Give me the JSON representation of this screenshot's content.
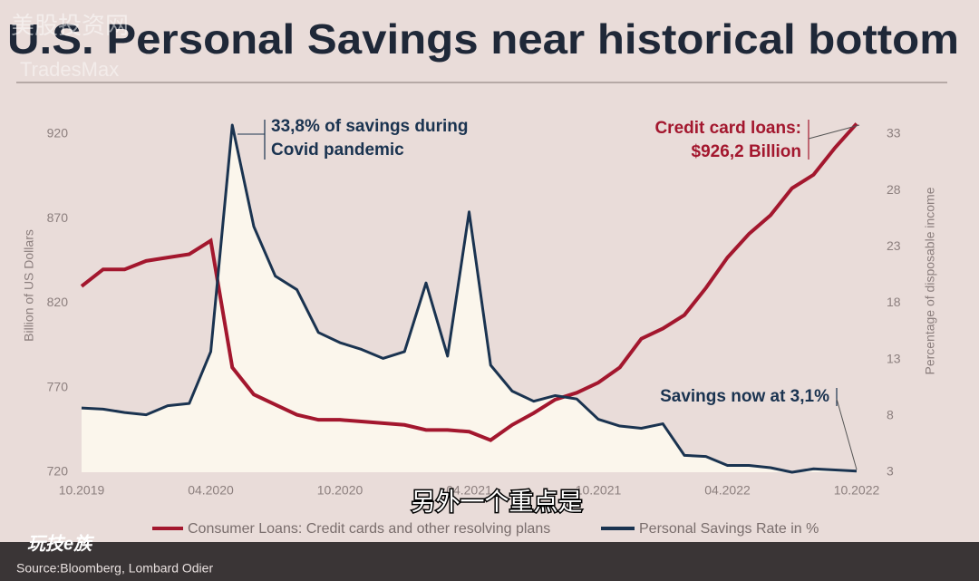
{
  "chart_data": {
    "type": "line",
    "title": "U.S. Personal Savings near historical bottom",
    "watermark": [
      "美股投资网",
      "TradesMax"
    ],
    "y_label": "Billion of US Dollars",
    "y2_label": "Percentage of disposable income",
    "categories": [
      "10.2019",
      null,
      null,
      null,
      null,
      null,
      "04.2020",
      null,
      null,
      null,
      null,
      null,
      "10.2020",
      null,
      null,
      null,
      null,
      null,
      "04.2021",
      null,
      null,
      null,
      null,
      null,
      "10.2021",
      null,
      null,
      null,
      null,
      null,
      "04.2022",
      null,
      null,
      null,
      null,
      null,
      "10.2022"
    ],
    "ylim": [
      720,
      920
    ],
    "yticks": [
      720,
      770,
      820,
      870,
      920
    ],
    "y2lim": [
      3,
      33
    ],
    "y2ticks": [
      3,
      8,
      13,
      18,
      23,
      28,
      33
    ],
    "series": [
      {
        "name": "Consumer Loans: Credit cards and other resolving plans",
        "color": "#a3172e",
        "values": [
          830,
          840,
          840,
          845,
          847,
          849,
          857,
          782,
          766,
          760,
          754,
          751,
          751,
          750,
          749,
          748,
          745,
          745,
          744,
          739,
          748,
          755,
          763,
          767,
          773,
          782,
          799,
          805,
          813,
          829,
          847,
          861,
          872,
          888,
          896,
          912,
          926.2
        ]
      },
      {
        "name": "Personal Savings Rate in %",
        "color": "#1a3350",
        "axis": "y2",
        "values": [
          8.7,
          8.6,
          8.3,
          8.1,
          8.9,
          9.1,
          13.7,
          33.8,
          24.8,
          20.4,
          19.2,
          15.4,
          14.5,
          13.9,
          13.1,
          13.7,
          19.8,
          13.3,
          26.1,
          12.5,
          10.2,
          9.3,
          9.8,
          9.5,
          7.7,
          7.1,
          6.9,
          7.3,
          4.5,
          4.4,
          3.6,
          3.6,
          3.4,
          3.0,
          3.3,
          3.2,
          3.1
        ]
      }
    ],
    "annotations": [
      [
        "33,8% of savings during",
        "Covid pandemic"
      ],
      [
        "Credit card loans:",
        "$926,2 Billion"
      ],
      [
        "Savings now at 3,1%"
      ]
    ],
    "source": "Source:Bloomberg, Lombard Odier"
  },
  "overlay": {
    "caption": "另外一个重点是",
    "logo": "玩技e族"
  }
}
